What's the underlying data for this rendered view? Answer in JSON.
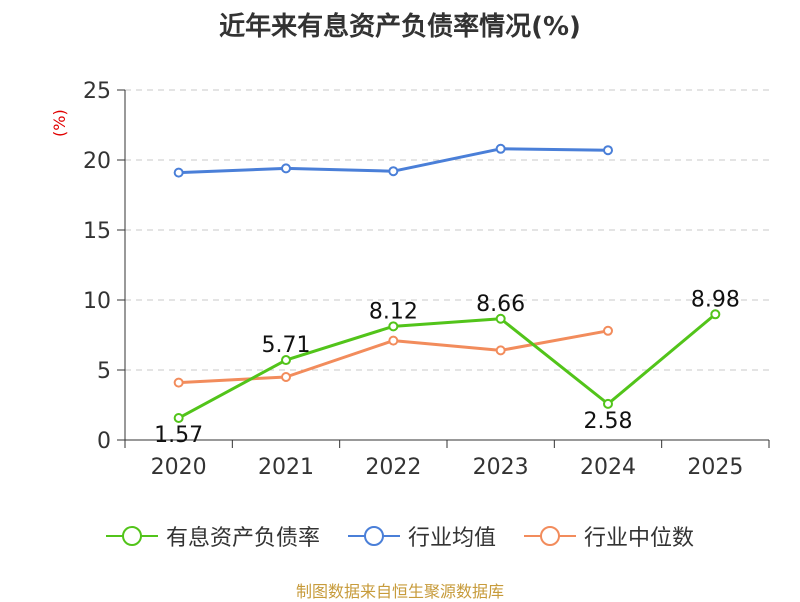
{
  "title": "近年来有息资产负债率情况(%)",
  "y_unit": "(%)",
  "source": "制图数据来自恒生聚源数据库",
  "chart_data": {
    "type": "line",
    "title": "近年来有息资产负债率情况(%)",
    "xlabel": "",
    "ylabel": "(%)",
    "categories": [
      "2020",
      "2021",
      "2022",
      "2023",
      "2024",
      "2025"
    ],
    "ylim": [
      0,
      25
    ],
    "yticks": [
      0,
      5,
      10,
      15,
      20,
      25
    ],
    "grid": true,
    "legend_position": "bottom",
    "series": [
      {
        "name": "有息资产负债率",
        "color": "#52c41a",
        "values": [
          1.57,
          5.71,
          8.12,
          8.66,
          2.58,
          8.98
        ],
        "labels": [
          "1.57",
          "5.71",
          "8.12",
          "8.66",
          "2.58",
          "8.98"
        ],
        "show_labels": true
      },
      {
        "name": "行业均值",
        "color": "#4a7fd8",
        "values": [
          19.1,
          19.4,
          19.2,
          20.8,
          20.7,
          null
        ],
        "show_labels": false
      },
      {
        "name": "行业中位数",
        "color": "#f28c5c",
        "values": [
          4.1,
          4.5,
          7.1,
          6.4,
          7.8,
          null
        ],
        "show_labels": false
      }
    ]
  }
}
